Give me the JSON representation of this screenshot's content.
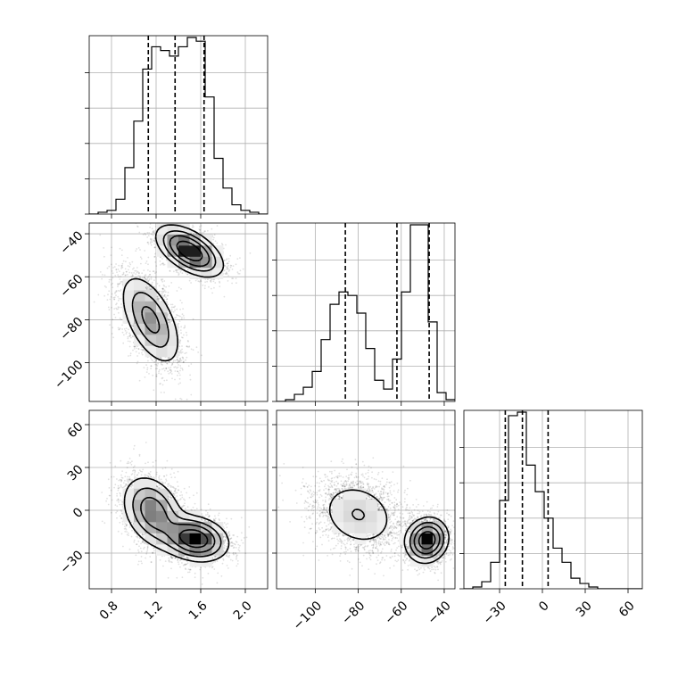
{
  "chart_data": {
    "type": "corner",
    "grid": true,
    "parameters": [
      {
        "range": [
          0.6,
          2.2
        ],
        "ticks": [
          0.8,
          1.2,
          1.6,
          2.0
        ],
        "tick_labels": [
          "0.8",
          "1.2",
          "1.6",
          "2.0"
        ],
        "quantiles": [
          1.13,
          1.37,
          1.63
        ]
      },
      {
        "range": [
          -118,
          -35
        ],
        "ticks": [
          -100,
          -80,
          -60,
          -40
        ],
        "tick_labels": [
          "−100",
          "−80",
          "−60",
          "−40"
        ],
        "quantiles": [
          -86,
          -62,
          -47
        ]
      },
      {
        "range": [
          -55,
          70
        ],
        "ticks": [
          -30,
          0,
          30,
          60
        ],
        "tick_labels": [
          "−30",
          "0",
          "30",
          "60"
        ],
        "quantiles": [
          -26,
          -14,
          4
        ]
      }
    ],
    "histograms": [
      {
        "param": 0,
        "bin_edges": [
          0.6,
          0.68,
          0.76,
          0.84,
          0.92,
          1.0,
          1.08,
          1.16,
          1.24,
          1.32,
          1.4,
          1.48,
          1.56,
          1.64,
          1.72,
          1.8,
          1.88,
          1.96,
          2.04,
          2.12,
          2.2
        ],
        "counts": [
          0,
          1,
          2,
          8,
          25,
          50,
          78,
          90,
          88,
          85,
          90,
          95,
          93,
          63,
          30,
          14,
          5,
          2,
          1,
          0
        ]
      },
      {
        "param": 1,
        "bin_edges": [
          -118,
          -113.85,
          -109.7,
          -105.55,
          -101.4,
          -97.25,
          -93.1,
          -88.95,
          -84.8,
          -80.65,
          -76.5,
          -72.35,
          -68.2,
          -64.05,
          -59.9,
          -55.75,
          -51.6,
          -47.45,
          -43.3,
          -39.15,
          -35
        ],
        "counts": [
          0,
          1,
          4,
          8,
          17,
          35,
          55,
          62,
          60,
          50,
          30,
          12,
          7,
          24,
          62,
          100,
          100,
          45,
          5,
          1
        ]
      },
      {
        "param": 2,
        "bin_edges": [
          -55,
          -48.75,
          -42.5,
          -36.25,
          -30,
          -23.75,
          -17.5,
          -11.25,
          -5,
          1.25,
          7.5,
          13.75,
          20,
          26.25,
          32.5,
          38.75,
          45,
          51.25,
          57.5,
          63.75,
          70
        ],
        "counts": [
          0,
          1,
          4,
          15,
          50,
          98,
          100,
          70,
          55,
          40,
          23,
          15,
          6,
          3,
          1,
          0,
          0,
          0,
          0,
          0
        ]
      }
    ],
    "scatter_panels": [
      {
        "x_param": 0,
        "y_param": 1,
        "modes": [
          {
            "center": [
              1.5,
              -48
            ],
            "sd": [
              0.15,
              6
            ],
            "rho": -0.55,
            "weight": 0.5
          },
          {
            "center": [
              1.15,
              -80
            ],
            "sd": [
              0.14,
              11
            ],
            "rho": -0.55,
            "weight": 0.5
          }
        ]
      },
      {
        "x_param": 0,
        "y_param": 2,
        "modes": [
          {
            "center": [
              1.17,
              -1
            ],
            "sd": [
              0.14,
              13
            ],
            "rho": -0.3,
            "weight": 0.5
          },
          {
            "center": [
              1.55,
              -20
            ],
            "sd": [
              0.15,
              8
            ],
            "rho": -0.2,
            "weight": 0.5
          }
        ]
      },
      {
        "x_param": 1,
        "y_param": 2,
        "modes": [
          {
            "center": [
              -80,
              -3
            ],
            "sd": [
              10,
              13
            ],
            "rho": -0.2,
            "weight": 0.5
          },
          {
            "center": [
              -48,
              -21
            ],
            "sd": [
              5,
              8
            ],
            "rho": 0.1,
            "weight": 0.5
          }
        ]
      }
    ]
  }
}
